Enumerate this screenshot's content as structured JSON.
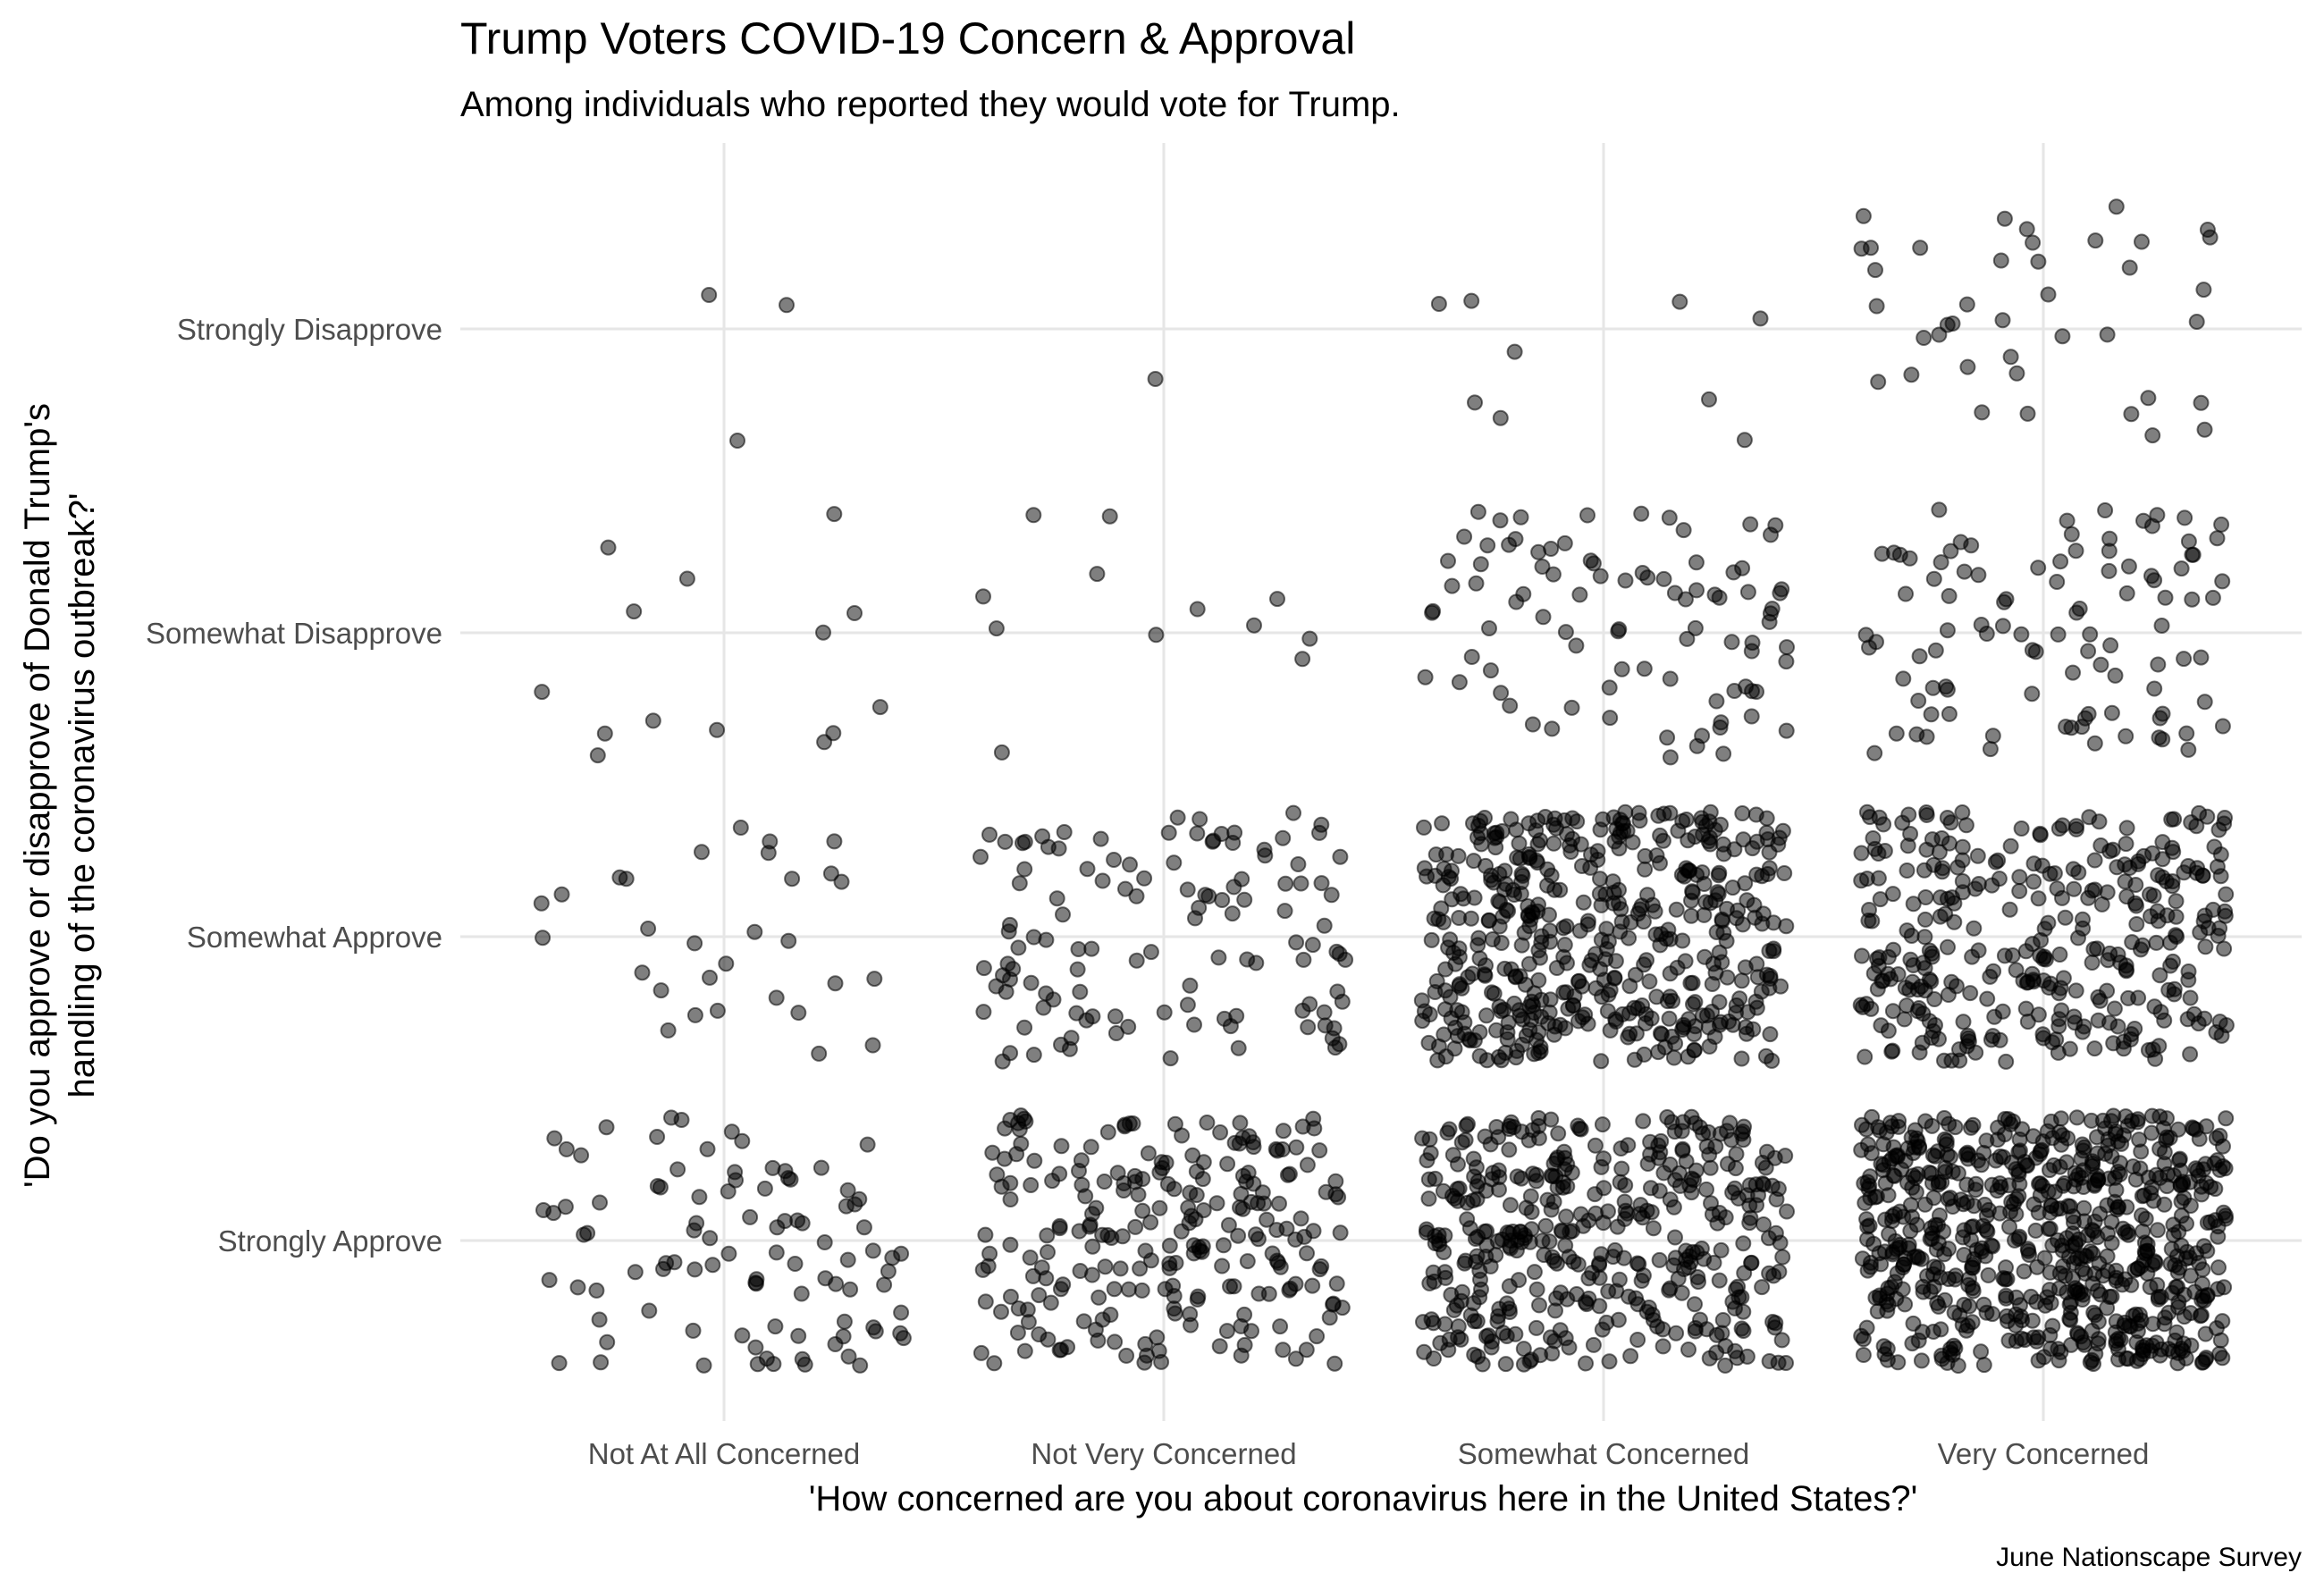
{
  "chart_data": {
    "type": "scatter",
    "jitter": true,
    "title": "Trump Voters COVID-19 Concern & Approval",
    "subtitle": "Among individuals who reported they would vote for Trump.",
    "xlabel": "'How concerned are you about coronavirus here in the United States?'",
    "ylabel_lines": [
      "'Do you approve or disapprove of Donald Trump's",
      "handling of the coronavirus outbreak?'"
    ],
    "caption": "June Nationscape Survey",
    "x_categories": [
      "Not At All Concerned",
      "Not Very Concerned",
      "Somewhat Concerned",
      "Very Concerned"
    ],
    "y_categories": [
      "Strongly Approve",
      "Somewhat Approve",
      "Somewhat Disapprove",
      "Strongly Disapprove"
    ],
    "grid": true,
    "legend": "none",
    "point_color": "#000000",
    "point_alpha": 0.5,
    "counts": [
      [
        95,
        30,
        14,
        3
      ],
      [
        235,
        120,
        12,
        1
      ],
      [
        420,
        480,
        90,
        9
      ],
      [
        700,
        340,
        100,
        40
      ]
    ],
    "counts_note_rows": "rows follow x_categories; columns follow y_categories; values are approximate point counts read from the jittered plot"
  }
}
